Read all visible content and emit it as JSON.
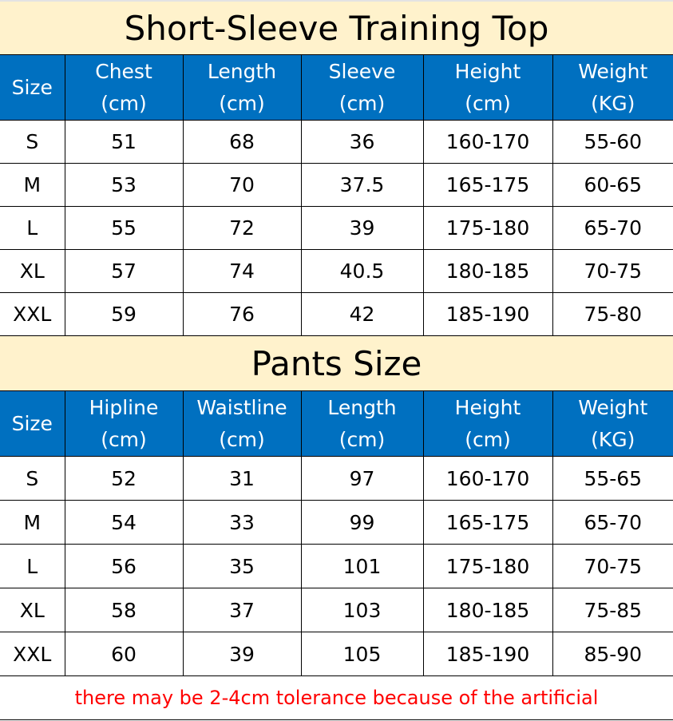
{
  "colors": {
    "title_bg": "#fff2cc",
    "header_bg": "#0070c0",
    "header_text": "#ffffff",
    "note_text": "#ff0000"
  },
  "top": {
    "title": "Short-Sleeve Training Top",
    "headers": [
      [
        "Size",
        ""
      ],
      [
        "Chest",
        "(cm)"
      ],
      [
        "Length",
        "(cm)"
      ],
      [
        "Sleeve",
        "(cm)"
      ],
      [
        "Height",
        "(cm)"
      ],
      [
        "Weight",
        "(KG)"
      ]
    ],
    "rows": [
      [
        "S",
        "51",
        "68",
        "36",
        "160-170",
        "55-60"
      ],
      [
        "M",
        "53",
        "70",
        "37.5",
        "165-175",
        "60-65"
      ],
      [
        "L",
        "55",
        "72",
        "39",
        "175-180",
        "65-70"
      ],
      [
        "XL",
        "57",
        "74",
        "40.5",
        "180-185",
        "70-75"
      ],
      [
        "XXL",
        "59",
        "76",
        "42",
        "185-190",
        "75-80"
      ]
    ]
  },
  "pants": {
    "title": "Pants Size",
    "headers": [
      [
        "Size",
        ""
      ],
      [
        "Hipline",
        "(cm)"
      ],
      [
        "Waistline",
        "(cm)"
      ],
      [
        "Length",
        "(cm)"
      ],
      [
        "Height",
        "(cm)"
      ],
      [
        "Weight",
        "(KG)"
      ]
    ],
    "rows": [
      [
        "S",
        "52",
        "31",
        "97",
        "160-170",
        "55-65"
      ],
      [
        "M",
        "54",
        "33",
        "99",
        "165-175",
        "65-70"
      ],
      [
        "L",
        "56",
        "35",
        "101",
        "175-180",
        "70-75"
      ],
      [
        "XL",
        "58",
        "37",
        "103",
        "180-185",
        "75-85"
      ],
      [
        "XXL",
        "60",
        "39",
        "105",
        "185-190",
        "85-90"
      ]
    ]
  },
  "note": "there may be 2-4cm tolerance because of the artificial"
}
